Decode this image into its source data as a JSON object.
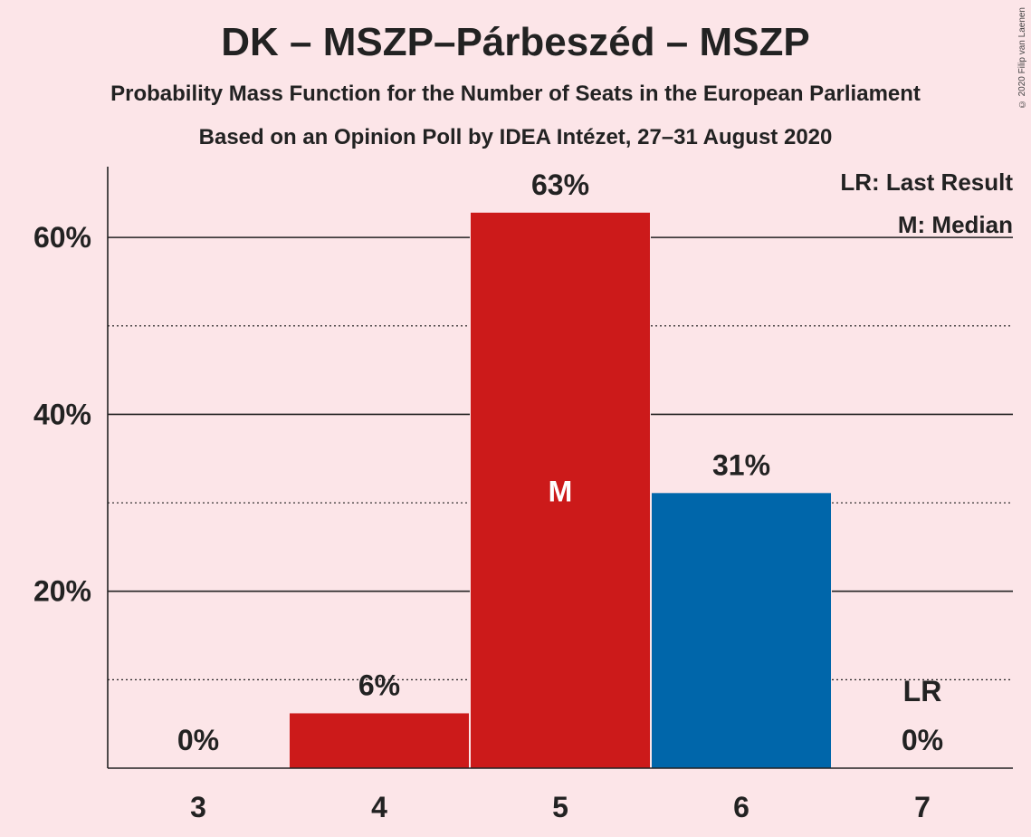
{
  "chart_data": {
    "type": "bar",
    "title": "DK – MSZP–Párbeszéd – MSZP",
    "subtitle": "Probability Mass Function for the Number of Seats in the European Parliament",
    "subtitle2": "Based on an Opinion Poll by IDEA Intézet, 27–31 August 2020",
    "categories": [
      "3",
      "4",
      "5",
      "6",
      "7"
    ],
    "values": [
      0,
      6.2,
      62.8,
      31.1,
      0
    ],
    "value_labels": [
      "0%",
      "6%",
      "63%",
      "31%",
      "0%"
    ],
    "bar_colors": [
      "#CC1A1A",
      "#CC1A1A",
      "#CC1A1A",
      "#0066AA",
      "#CC1A1A"
    ],
    "ylim": [
      0,
      68
    ],
    "y_ticks": [
      20,
      40,
      60
    ],
    "y_tick_labels": [
      "20%",
      "40%",
      "60%"
    ],
    "y_minor_ticks": [
      10,
      30,
      50
    ],
    "median_category": "5",
    "median_marker": "M",
    "last_result_category": "7",
    "last_result_marker": "LR",
    "legend": [
      "LR: Last Result",
      "M: Median"
    ],
    "legend_position": "top-right",
    "grid": true
  },
  "copyright": "© 2020 Filip van Laenen",
  "colors": {
    "background": "#FCE5E8",
    "text": "#222222"
  }
}
